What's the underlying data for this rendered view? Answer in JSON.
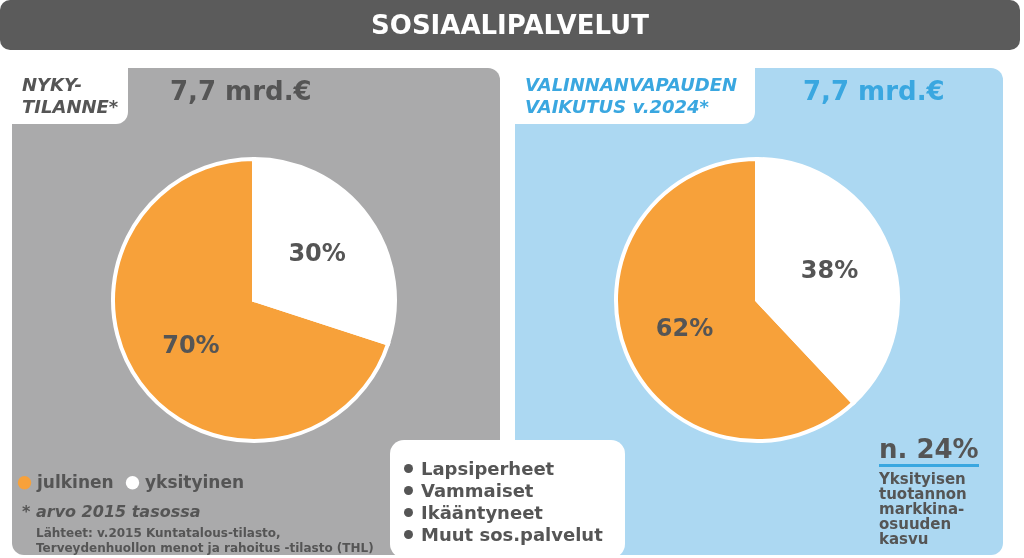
{
  "chart_data": [
    {
      "type": "pie",
      "title": "NYKY-TILANNE*",
      "subtitle": "7,7 mrd.€",
      "categories": [
        "julkinen",
        "yksityinen"
      ],
      "values": [
        70,
        30
      ],
      "colors": [
        "#f7a13a",
        "#ffffff"
      ],
      "value_labels": [
        "70%",
        "30%"
      ],
      "legend": "bottom left",
      "annotations": [
        "* arvo 2015 tasossa",
        "Lähteet: v.2015 Kuntatalous-tilasto,\nTerveydenhuollon menot ja rahoitus -tilasto (THL)"
      ]
    },
    {
      "type": "pie",
      "title": "VALINNANVAPAUDEN VAIKUTUS v.2024*",
      "subtitle": "7,7 mrd.€",
      "categories": [
        null,
        null
      ],
      "values": [
        62,
        38
      ],
      "colors": [
        "#f7a13a",
        "#ffffff"
      ],
      "value_labels": [
        "62%",
        "38%"
      ],
      "annotations": [
        "n. 24%",
        "Yksityisen tuotannon markkina-osuuden kasvu"
      ]
    },
    {
      "type": "other",
      "title": "SOSIAALIPALVELUT",
      "annotations": [
        "Lapsiperheet",
        "Vammaiset",
        "Ikääntyneet",
        "Muut sos.palvelut"
      ]
    }
  ]
}
